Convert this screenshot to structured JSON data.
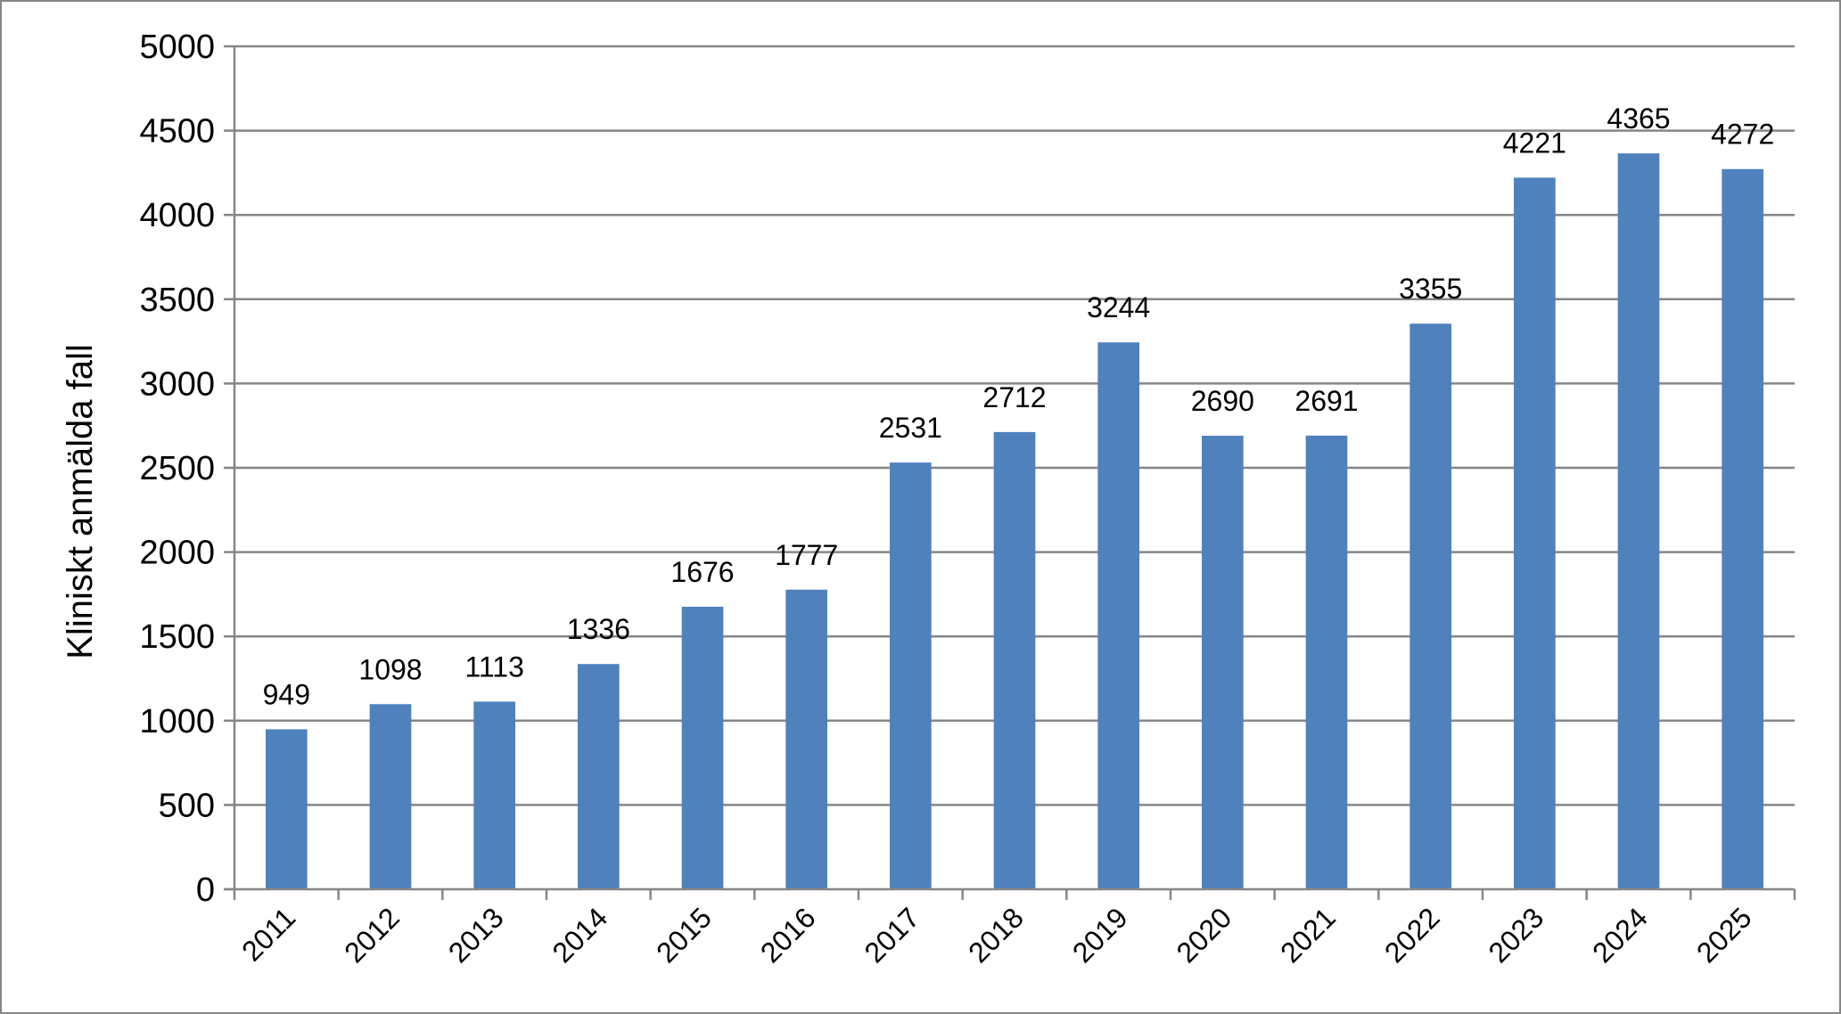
{
  "chart_data": {
    "type": "bar",
    "title": "",
    "xlabel": "",
    "ylabel": "Kliniskt anmälda fall",
    "ylim": [
      0,
      5000
    ],
    "yticks": [
      0,
      500,
      1000,
      1500,
      2000,
      2500,
      3000,
      3500,
      4000,
      4500,
      5000
    ],
    "grid": true,
    "legend": "none",
    "categories": [
      "2011",
      "2012",
      "2013",
      "2014",
      "2015",
      "2016",
      "2017",
      "2018",
      "2019",
      "2020",
      "2021",
      "2022",
      "2023",
      "2024",
      "2025"
    ],
    "series": [
      {
        "values": [
          949,
          1098,
          1113,
          1336,
          1676,
          1777,
          2531,
          2712,
          3244,
          2690,
          2691,
          3355,
          4221,
          4365,
          4272
        ]
      }
    ],
    "colors": {
      "bar": "#4f81bd",
      "grid": "#868686",
      "axis": "#868686"
    }
  }
}
